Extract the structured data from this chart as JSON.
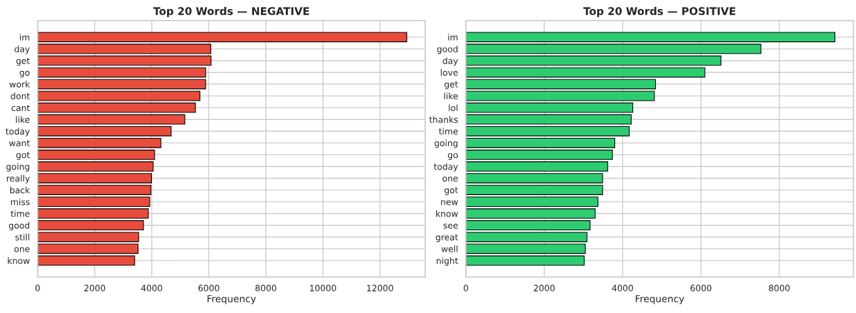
{
  "chart_data": [
    {
      "type": "bar",
      "orientation": "horizontal",
      "title": "Top 20 Words — NEGATIVE",
      "xlabel": "Frequency",
      "categories": [
        "im",
        "day",
        "get",
        "go",
        "work",
        "dont",
        "cant",
        "like",
        "today",
        "want",
        "got",
        "going",
        "really",
        "back",
        "miss",
        "time",
        "good",
        "still",
        "one",
        "know"
      ],
      "series": [
        {
          "color": "#e74c3c",
          "values": [
            12940,
            6070,
            6080,
            5890,
            5890,
            5690,
            5530,
            5160,
            4680,
            4320,
            4100,
            4050,
            3990,
            3970,
            3930,
            3880,
            3710,
            3540,
            3520,
            3400
          ]
        }
      ],
      "xlim": [
        0,
        13587
      ],
      "xticks": [
        0,
        2000,
        4000,
        6000,
        8000,
        10000,
        12000
      ],
      "grid": true
    },
    {
      "type": "bar",
      "orientation": "horizontal",
      "title": "Top 20 Words — POSITIVE",
      "xlabel": "Frequency",
      "categories": [
        "im",
        "good",
        "day",
        "love",
        "get",
        "like",
        "lol",
        "thanks",
        "time",
        "going",
        "go",
        "today",
        "one",
        "got",
        "new",
        "know",
        "see",
        "great",
        "well",
        "night"
      ],
      "series": [
        {
          "color": "#2ecc71",
          "values": [
            9420,
            7530,
            6510,
            6100,
            4840,
            4810,
            4260,
            4220,
            4170,
            3800,
            3740,
            3620,
            3490,
            3490,
            3370,
            3300,
            3170,
            3090,
            3050,
            3020
          ]
        }
      ],
      "xlim": [
        0,
        9893
      ],
      "xticks": [
        0,
        2000,
        4000,
        6000,
        8000
      ],
      "grid": true
    }
  ]
}
